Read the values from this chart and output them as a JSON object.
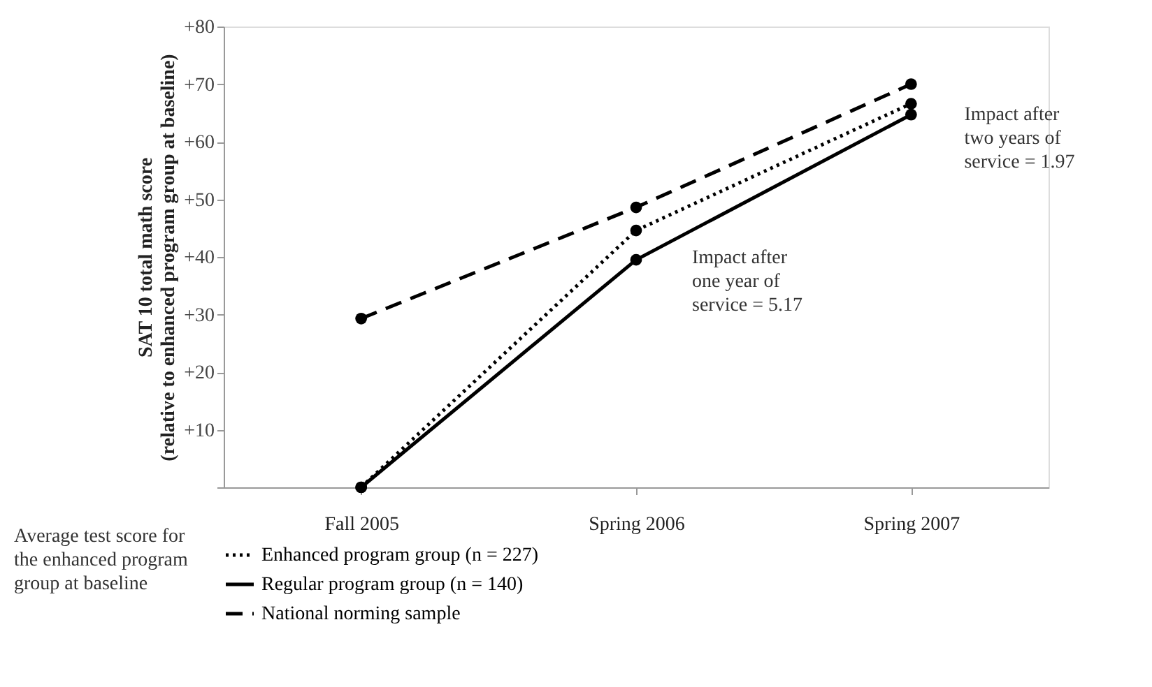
{
  "chart_data": {
    "type": "line",
    "ylabel": "SAT 10 total math score\n(relative to enhanced program group at baseline)",
    "categories": [
      "Fall 2005",
      "Spring 2006",
      "Spring 2007"
    ],
    "series": [
      {
        "name": "Enhanced program group (n = 227)",
        "color": "#000000",
        "line_style": "dotted",
        "values": [
          0,
          44.6,
          66.6
        ]
      },
      {
        "name": "Regular program group (n = 140)",
        "color": "#000000",
        "line_style": "solid",
        "values": [
          0,
          39.5,
          64.7
        ]
      },
      {
        "name": "National norming sample",
        "color": "#000000",
        "line_style": "dashed",
        "values": [
          29.3,
          48.6,
          70.0
        ]
      }
    ],
    "ylim": [
      0,
      80
    ],
    "yticks": [
      {
        "value": 0,
        "label": null
      },
      {
        "value": 10,
        "label": "+10"
      },
      {
        "value": 20,
        "label": "+20"
      },
      {
        "value": 30,
        "label": "+30"
      },
      {
        "value": 40,
        "label": "+40"
      },
      {
        "value": 50,
        "label": "+50"
      },
      {
        "value": 60,
        "label": "+60"
      },
      {
        "value": 70,
        "label": "+70"
      },
      {
        "value": 80,
        "label": "+80"
      }
    ],
    "annotations": [
      "Impact after one year of service = 5.17",
      "Impact after two years of service = 1.97",
      "Average test score for the enhanced program group at baseline"
    ],
    "marker": "circle",
    "grid": false,
    "legend": "bottom"
  }
}
